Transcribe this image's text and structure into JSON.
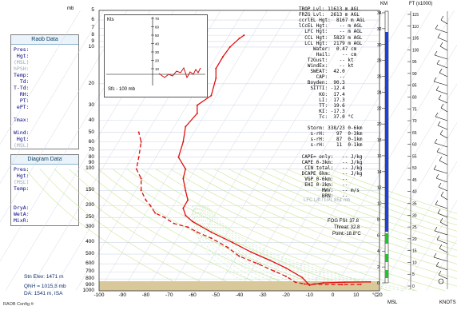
{
  "units": {
    "mb": "mb",
    "km": "KM",
    "ft": "FT (x1000)",
    "deg_c": "°C",
    "msl": "MSL",
    "knots": "KNOTS"
  },
  "pressure_levels": [
    "5",
    "6",
    "7",
    "8",
    "9",
    "10",
    "20",
    "30",
    "40",
    "50",
    "60",
    "70",
    "80",
    "90",
    "100",
    "150",
    "200",
    "250",
    "300",
    "400",
    "500",
    "600",
    "700",
    "800",
    "900",
    "1000"
  ],
  "temp_ticks": [
    "-100",
    "-90",
    "-80",
    "-70",
    "-60",
    "-50",
    "-40",
    "-30",
    "-20",
    "-10",
    "0",
    "10",
    "20"
  ],
  "raob_panel": {
    "title": "Raob Data",
    "rows": [
      {
        "label": "Pres:",
        "gray": false
      },
      {
        "label": " Hgt:",
        "gray": false
      },
      {
        "label": "(MSL)",
        "gray": true
      },
      {
        "label": "hPSH:",
        "gray": true
      },
      {
        "label": "Temp:",
        "gray": false
      },
      {
        "label": "  Td:",
        "gray": false
      },
      {
        "label": "T-Td:",
        "gray": false
      },
      {
        "label": "  RH:",
        "gray": false
      },
      {
        "label": "  PT:",
        "gray": false
      },
      {
        "label": " ePT:",
        "gray": false
      },
      {
        "label": "",
        "gray": false
      },
      {
        "label": "Tmax:",
        "gray": false
      },
      {
        "label": "",
        "gray": false
      },
      {
        "label": "Wind:",
        "gray": false
      },
      {
        "label": " Hgt:",
        "gray": false
      },
      {
        "label": "(MSL)",
        "gray": true
      }
    ]
  },
  "diagram_panel": {
    "title": "Diagram Data",
    "rows": [
      {
        "label": "Pres:",
        "gray": false
      },
      {
        "label": " Hgt:",
        "gray": false
      },
      {
        "label": "(MSL)",
        "gray": true
      },
      {
        "label": "Temp:",
        "gray": false
      },
      {
        "label": "",
        "gray": false
      },
      {
        "label": "",
        "gray": false
      },
      {
        "label": "DryA:",
        "gray": false
      },
      {
        "label": "WetA:",
        "gray": false
      },
      {
        "label": "MixR:",
        "gray": false
      }
    ]
  },
  "hodograph": {
    "label": "Kts",
    "footer": "Sfc - 100 mb",
    "ticks": [
      "70",
      "60",
      "50",
      "40",
      "30",
      "20",
      "10"
    ]
  },
  "indices": [
    "TROP Lvl: 11613 m AGL",
    "FRZG Lvl:  2613 m AGL",
    "ccrlEL Hgt:  8167 m AGL",
    "lCcEL Hgt:    -- m AGL",
    "  LFC Hgt:    -- m AGL",
    "  CCL Hgt:  5823 m AGL",
    "  LCL Hgt:  2179 m AGL",
    "     Water:  0.47 cm",
    "      Hail:    -- cm",
    "   T2Gust:    -- kt",
    "   WindEx:    -- kt",
    "    SWEAT:  42.0",
    "      CAP:    --",
    "   Boyden:  90.3",
    "    SITTI: -12.4",
    "       KO:  17.4",
    "       LI:  17.3",
    "       TT:  19.6",
    "       KI: -17.3",
    "       Tc:  37.0 °C",
    "",
    "   Storm: 338/23 0-6km",
    "    s-rH:    97  0-3km",
    "    s-rH:    87  0-1km",
    "    s-rH:    11  0-1km",
    "",
    " CAPE= only:   -- J/kg",
    " CAPE 0-3km:   -- J/kg",
    "  CIN total:   -- J/kg",
    " DCAPE 6km:    -- J/kg",
    "  VGP 0-6km:   --",
    "  EHI 0-2km:   --",
    "        MWV:   -- m/s",
    "        BRN:   --"
  ],
  "lfc_lift": "LFC Lift / LPL 851 mb",
  "fog": {
    "line1": "FOG FSI: 37.8",
    "line2": "Threat: 32.8",
    "line3": "Point:-18.8°C"
  },
  "footer": {
    "stn_elev": "Stn Elev: 1471 m",
    "qnh": "QNH = 1015.8 mb",
    "da": "DA: 1541 m, ISA",
    "config": "RAOB Config #:"
  },
  "km_ticks": [
    "34",
    "32",
    "30",
    "28",
    "26",
    "24",
    "22",
    "20",
    "18",
    "16",
    "14",
    "12",
    "10",
    "8",
    "6",
    "4",
    "2",
    "0"
  ],
  "ft_ticks": [
    "115",
    "110",
    "105",
    "100",
    "95",
    "90",
    "85",
    "80",
    "75",
    "70",
    "65",
    "60",
    "55",
    "50",
    "45",
    "40",
    "35",
    "30",
    "25",
    "20",
    "15",
    "10",
    "5",
    "0"
  ],
  "colors": {
    "temperature": "#e01010",
    "dewpoint": "#e01010",
    "dry_adiabat": "#c9e79a",
    "moist_adiabat": "#b8dfa8",
    "isotherm": "#cfd8e6",
    "isobar": "#cfd8e6",
    "ground": "#d9c89a",
    "km_bar": "#1f3fd6",
    "wet_bar": "#21c42b",
    "panel_title": "#0b3f66"
  },
  "chart_data": {
    "type": "line",
    "title": "",
    "xlabel": "°C",
    "ylabel": "mb",
    "xlim": [
      -100,
      20
    ],
    "ylim": [
      1000,
      5
    ],
    "y_scale": "log",
    "series": [
      {
        "name": "",
        "style": "solid",
        "points": [
          [
            16,
            845
          ],
          [
            5,
            850
          ],
          [
            -4,
            860
          ],
          [
            -8,
            880
          ],
          [
            -10,
            900
          ],
          [
            -13,
            780
          ],
          [
            -20,
            650
          ],
          [
            -27,
            560
          ],
          [
            -35,
            480
          ],
          [
            -43,
            400
          ],
          [
            -52,
            330
          ],
          [
            -60,
            270
          ],
          [
            -63,
            240
          ],
          [
            -64,
            210
          ],
          [
            -62,
            180
          ],
          [
            -63,
            150
          ],
          [
            -64,
            120
          ],
          [
            -63,
            100
          ],
          [
            -66,
            80
          ],
          [
            -64,
            60
          ],
          [
            -63,
            45
          ],
          [
            -58,
            35
          ],
          [
            -58,
            30
          ],
          [
            -52,
            25
          ],
          [
            -50,
            18
          ],
          [
            -50,
            15
          ],
          [
            -47,
            12
          ],
          [
            -44,
            10
          ],
          [
            -40,
            8.5
          ],
          [
            -38,
            8
          ]
        ]
      },
      {
        "name": "",
        "style": "dashed",
        "points": [
          [
            12,
            885
          ],
          [
            4,
            890
          ],
          [
            -12,
            880
          ],
          [
            -16,
            850
          ],
          [
            -20,
            760
          ],
          [
            -25,
            690
          ],
          [
            -32,
            600
          ],
          [
            -40,
            520
          ],
          [
            -45,
            440
          ],
          [
            -52,
            370
          ],
          [
            -58,
            330
          ],
          [
            -62,
            300
          ],
          [
            -68,
            280
          ],
          [
            -72,
            250
          ],
          [
            -76,
            230
          ],
          [
            -78,
            200
          ],
          [
            -80,
            180
          ],
          [
            -82,
            150
          ],
          [
            -82,
            120
          ],
          [
            -84,
            100
          ],
          [
            -83,
            80
          ],
          [
            -82,
            60
          ],
          [
            -83,
            50
          ]
        ]
      }
    ]
  }
}
